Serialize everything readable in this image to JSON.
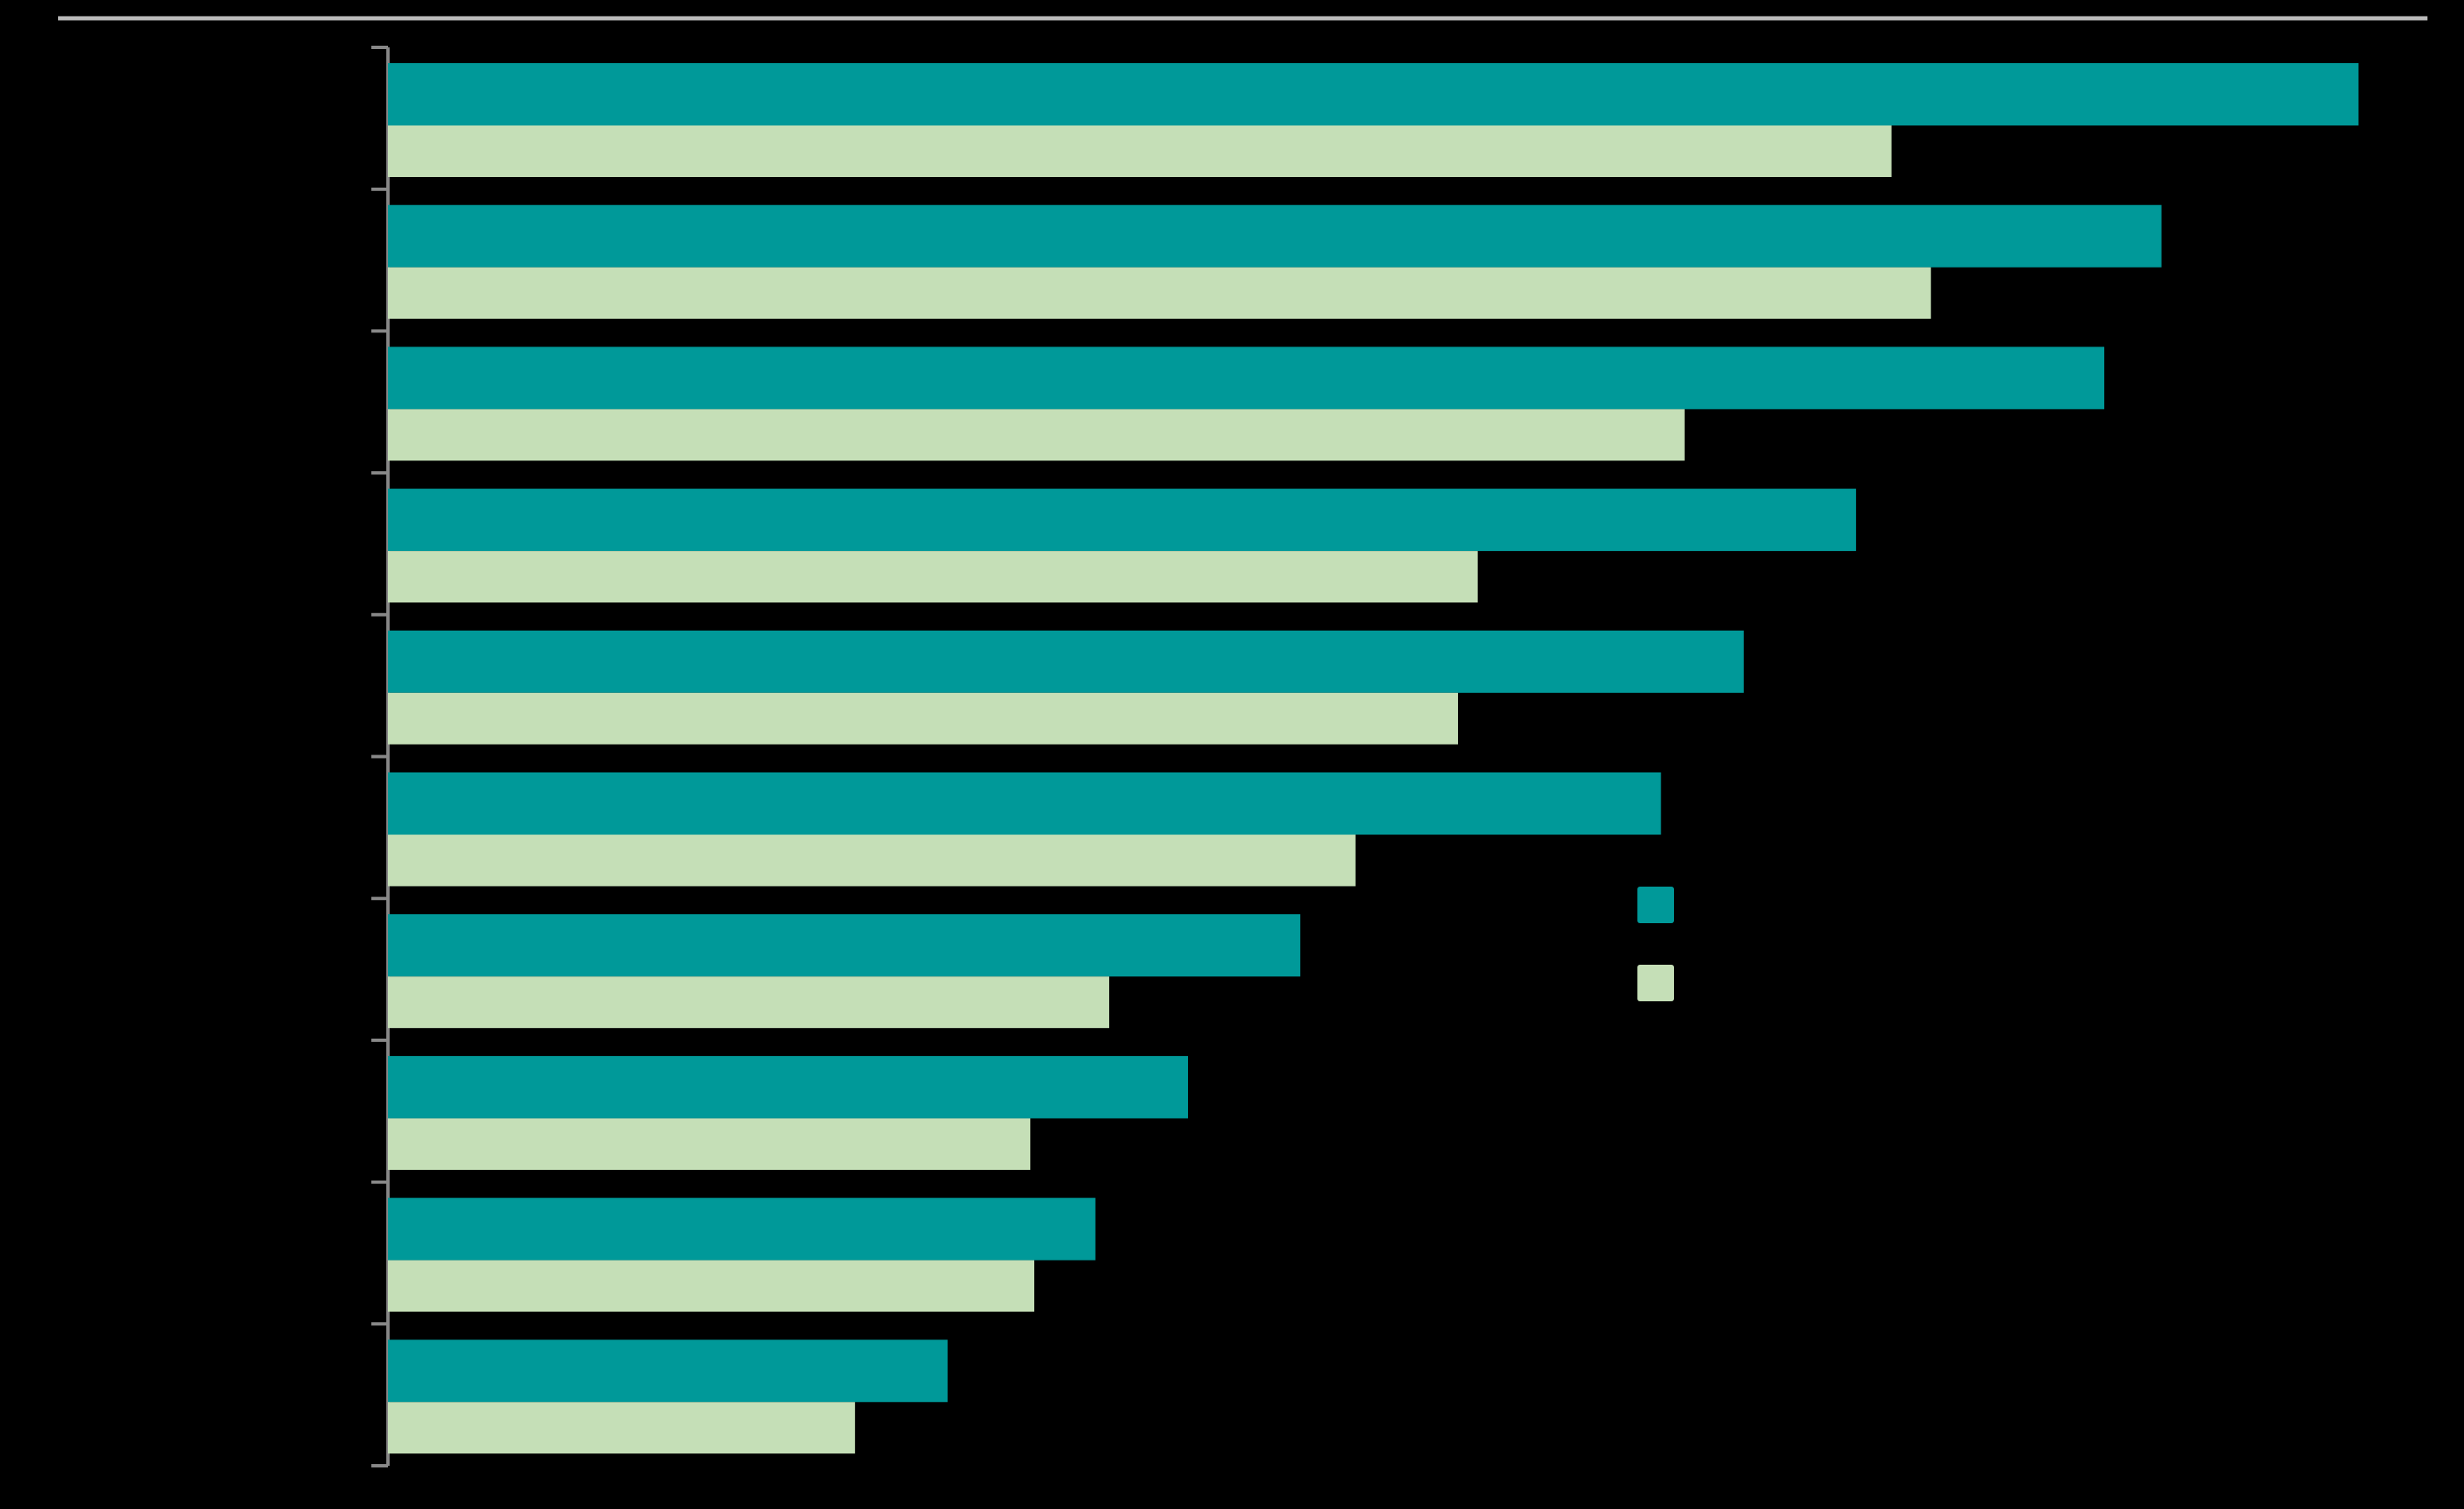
{
  "chart_data": {
    "type": "bar",
    "orientation": "horizontal",
    "categories": [
      "",
      "",
      "",
      "",
      "",
      "",
      "",
      "",
      "",
      ""
    ],
    "series": [
      {
        "color": "#009999",
        "values": [
          100,
          90,
          87.1,
          74.5,
          68.8,
          64.6,
          46.3,
          40.6,
          35.9,
          28.4
        ]
      },
      {
        "color": "#c5dfb7",
        "values": [
          76.3,
          78.3,
          65.8,
          55.3,
          54.3,
          49.1,
          36.6,
          32.6,
          32.8,
          23.7
        ]
      }
    ],
    "xlim": [
      0,
      100
    ],
    "grid": false,
    "legend_position": "right-center",
    "colors": {
      "background": "#000000",
      "top_rule": "#bbbbbb",
      "axis": "#888888",
      "series_1": "#009999",
      "series_2": "#c5dfb7"
    }
  }
}
